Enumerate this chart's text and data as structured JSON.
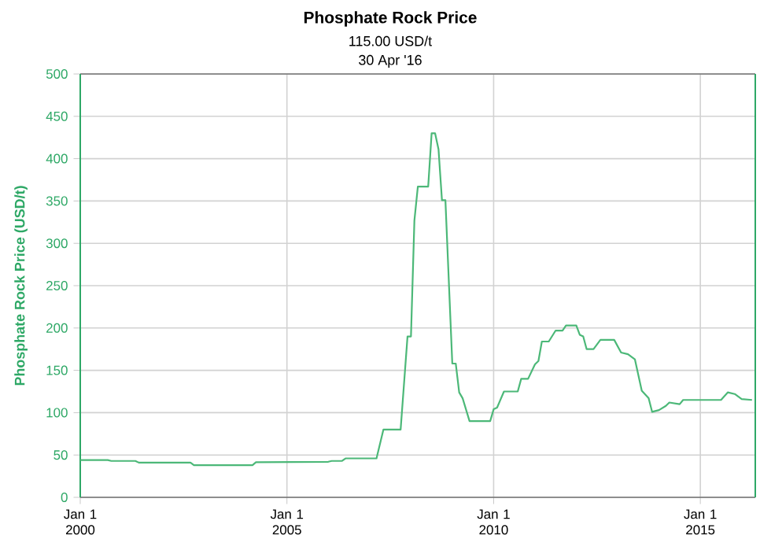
{
  "chart_data": {
    "type": "line",
    "title": "Phosphate Rock Price",
    "subtitle": "115.00 USD/t",
    "annotations": [
      "30 Apr '16"
    ],
    "ylabel": "Phosphate Rock Price (USD/t)",
    "grid": true,
    "xlim": [
      "2000-01-01",
      "2016-04-30"
    ],
    "ylim": [
      0,
      500
    ],
    "yticks": [
      0,
      50,
      100,
      150,
      200,
      250,
      300,
      350,
      400,
      450,
      500
    ],
    "xticks": [
      {
        "value": "2000-01-01",
        "label": "Jan 1 2000"
      },
      {
        "value": "2005-01-01",
        "label": "Jan 1 2005"
      },
      {
        "value": "2010-01-01",
        "label": "Jan 1 2010"
      },
      {
        "value": "2015-01-01",
        "label": "Jan 1 2015"
      }
    ],
    "series": [
      {
        "color": "#4cb878",
        "x": [
          "2000-01",
          "2000-09",
          "2000-10",
          "2001-05",
          "2001-06",
          "2002-09",
          "2002-10",
          "2004-03",
          "2004-04",
          "2006-01",
          "2006-02",
          "2006-05",
          "2006-06",
          "2007-03",
          "2007-05",
          "2007-10",
          "2007-12",
          "2008-01",
          "2008-02",
          "2008-03",
          "2008-06",
          "2008-07",
          "2008-08",
          "2008-09",
          "2008-10",
          "2008-11",
          "2009-01",
          "2009-02",
          "2009-03",
          "2009-04",
          "2009-06",
          "2009-12",
          "2010-01",
          "2010-02",
          "2010-04",
          "2010-08",
          "2010-09",
          "2010-11",
          "2011-01",
          "2011-02",
          "2011-03",
          "2011-05",
          "2011-07",
          "2011-09",
          "2011-10",
          "2012-01",
          "2012-02",
          "2012-03",
          "2012-04",
          "2012-06",
          "2012-08",
          "2012-12",
          "2013-02",
          "2013-04",
          "2013-06",
          "2013-08",
          "2013-10",
          "2013-11",
          "2014-01",
          "2014-03",
          "2014-04",
          "2014-07",
          "2014-08",
          "2015-07",
          "2015-09",
          "2015-11",
          "2016-01",
          "2016-04"
        ],
        "values": [
          44,
          44,
          43,
          43,
          41,
          41,
          38,
          38,
          41.5,
          42,
          43,
          43,
          46,
          46,
          80,
          80,
          190,
          190,
          327,
          367,
          367,
          430,
          430,
          411,
          351,
          351,
          158,
          158,
          124,
          117,
          90,
          90,
          104,
          106,
          125,
          125,
          140,
          140,
          157,
          161,
          184,
          184,
          197,
          197,
          203,
          203,
          192,
          190,
          175,
          175,
          186,
          186,
          171,
          169,
          163,
          126,
          117,
          101,
          103,
          108,
          112,
          110,
          115,
          115,
          124,
          122,
          116,
          115
        ]
      }
    ]
  }
}
